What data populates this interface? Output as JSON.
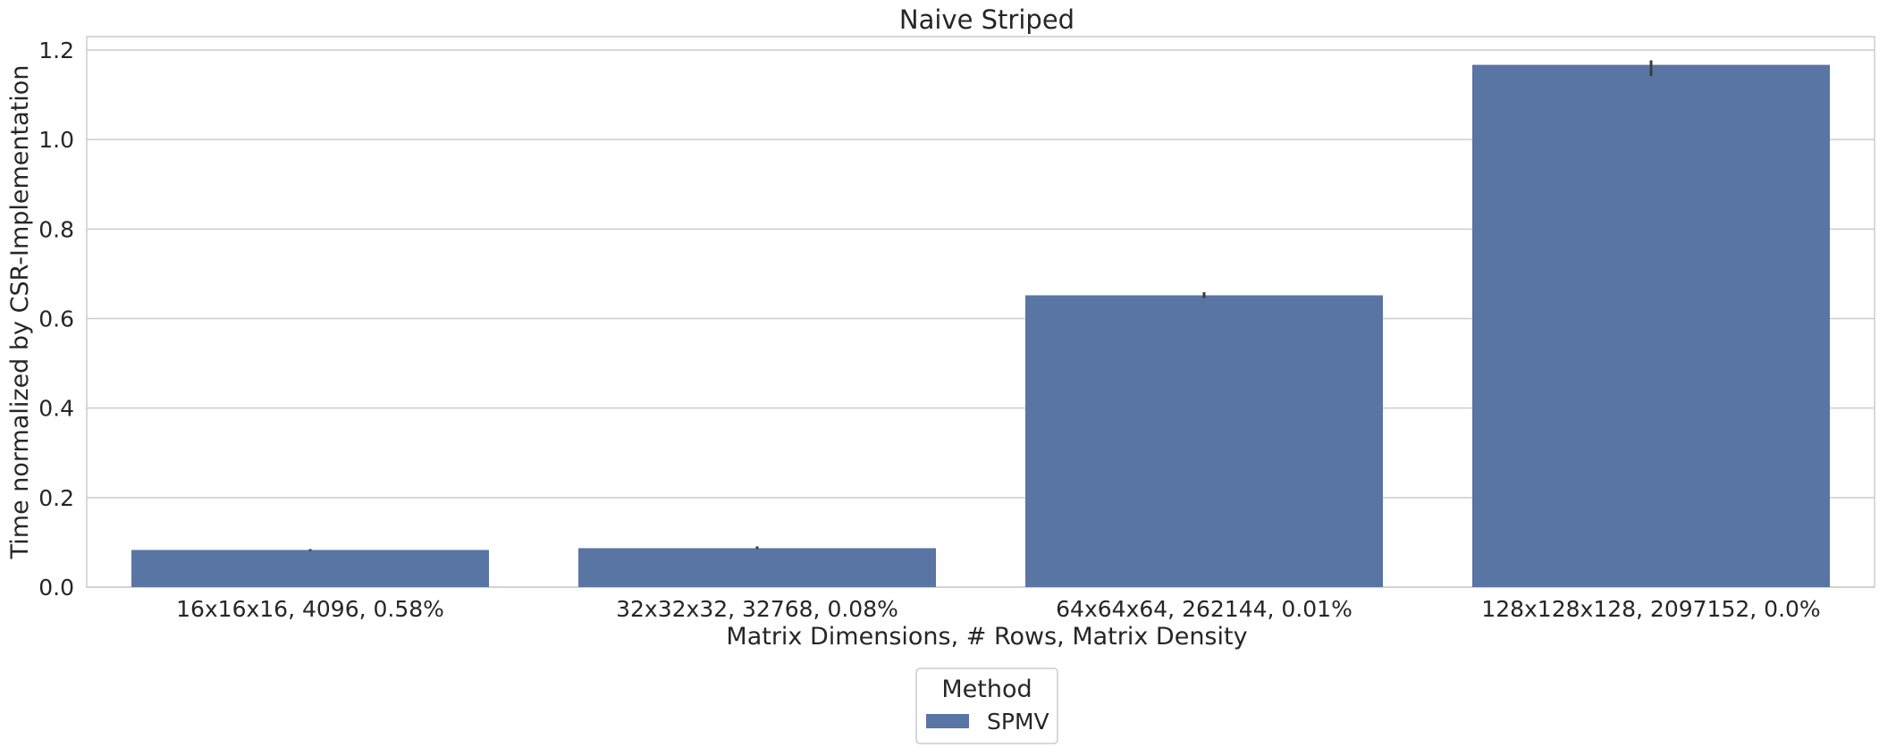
{
  "chart_data": {
    "type": "bar",
    "title": "Naive Striped",
    "xlabel": "Matrix Dimensions, # Rows, Matrix Density",
    "ylabel": "Time normalized by CSR-Implementation",
    "categories": [
      "16x16x16, 4096, 0.58%",
      "32x32x32, 32768, 0.08%",
      "64x64x64, 262144, 0.01%",
      "128x128x128, 2097152, 0.0%"
    ],
    "series": [
      {
        "name": "SPMV",
        "color": "#5975a4",
        "values": [
          0.083,
          0.087,
          0.652,
          1.167
        ],
        "error_low": [
          0.081,
          0.085,
          0.646,
          1.142
        ],
        "error_high": [
          0.085,
          0.091,
          0.659,
          1.177
        ]
      }
    ],
    "ylim": [
      0,
      1.23
    ],
    "yticks": [
      0.0,
      0.2,
      0.4,
      0.6,
      0.8,
      1.0,
      1.2
    ],
    "ytick_labels": [
      "0.0",
      "0.2",
      "0.4",
      "0.6",
      "0.8",
      "1.0",
      "1.2"
    ],
    "grid": "horizontal",
    "legend": {
      "title": "Method",
      "placement": "bottom-center",
      "entries": [
        "SPMV"
      ]
    }
  }
}
